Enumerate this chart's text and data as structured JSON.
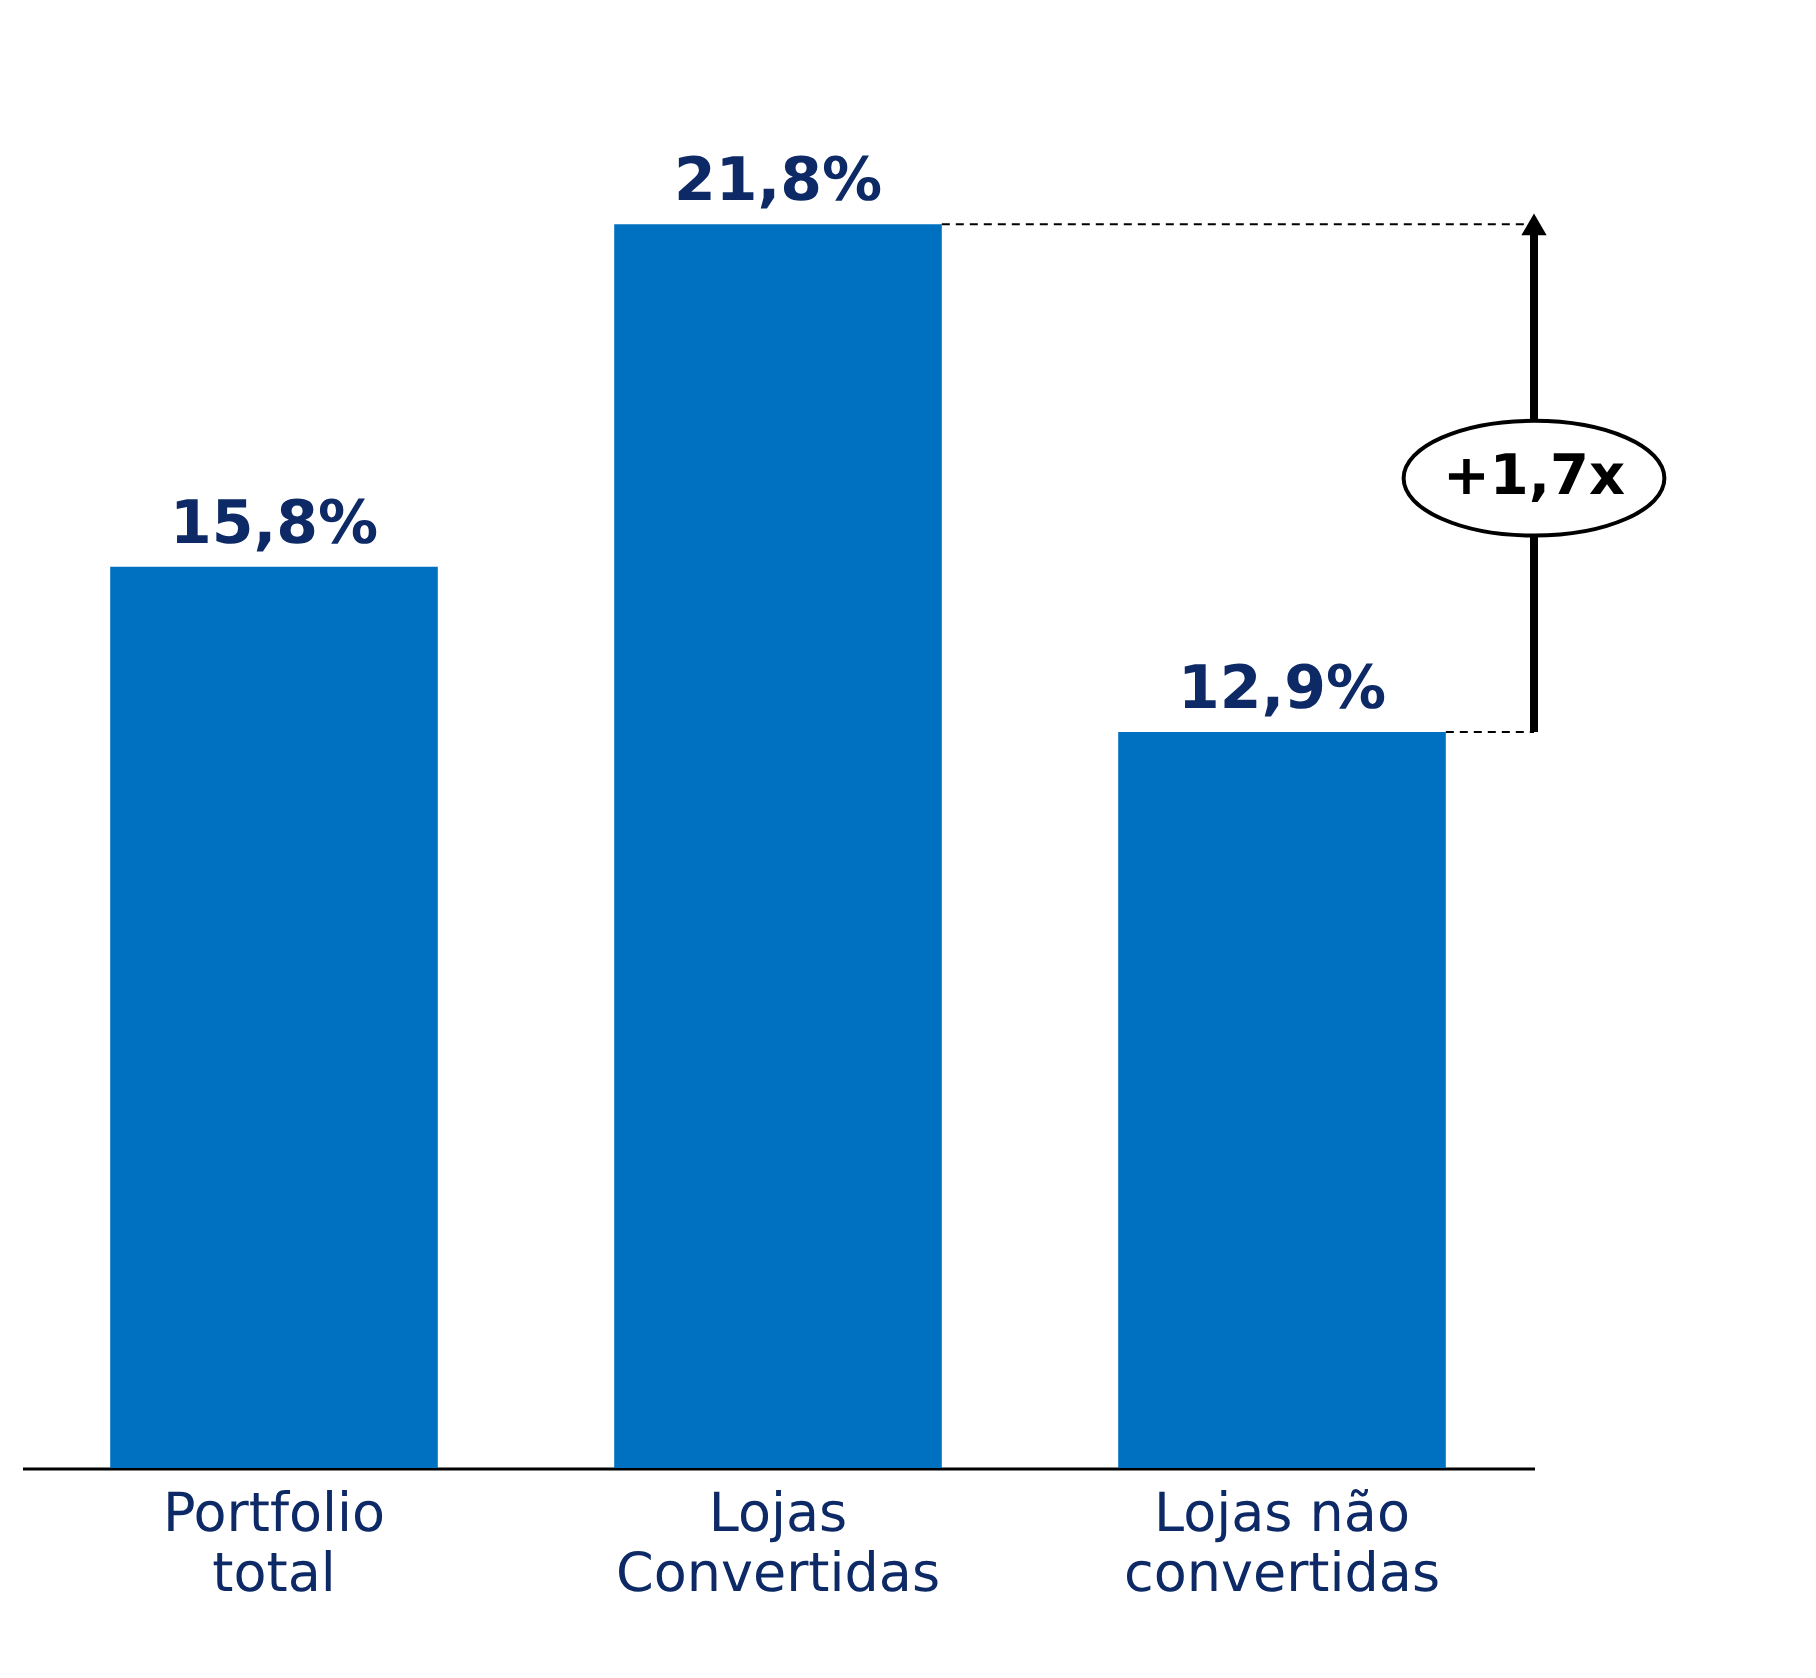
{
  "chart_data": {
    "type": "bar",
    "categories": [
      "Portfolio\ntotal",
      "Lojas\nConvertidas",
      "Lojas não\nconvertidas"
    ],
    "values": [
      15.8,
      21.8,
      12.9
    ],
    "color": "#0070c0",
    "value_labels": [
      "15,8%",
      "21,8%",
      "12,9%"
    ],
    "annotations": [
      "+1,7x"
    ],
    "grid": false
  }
}
